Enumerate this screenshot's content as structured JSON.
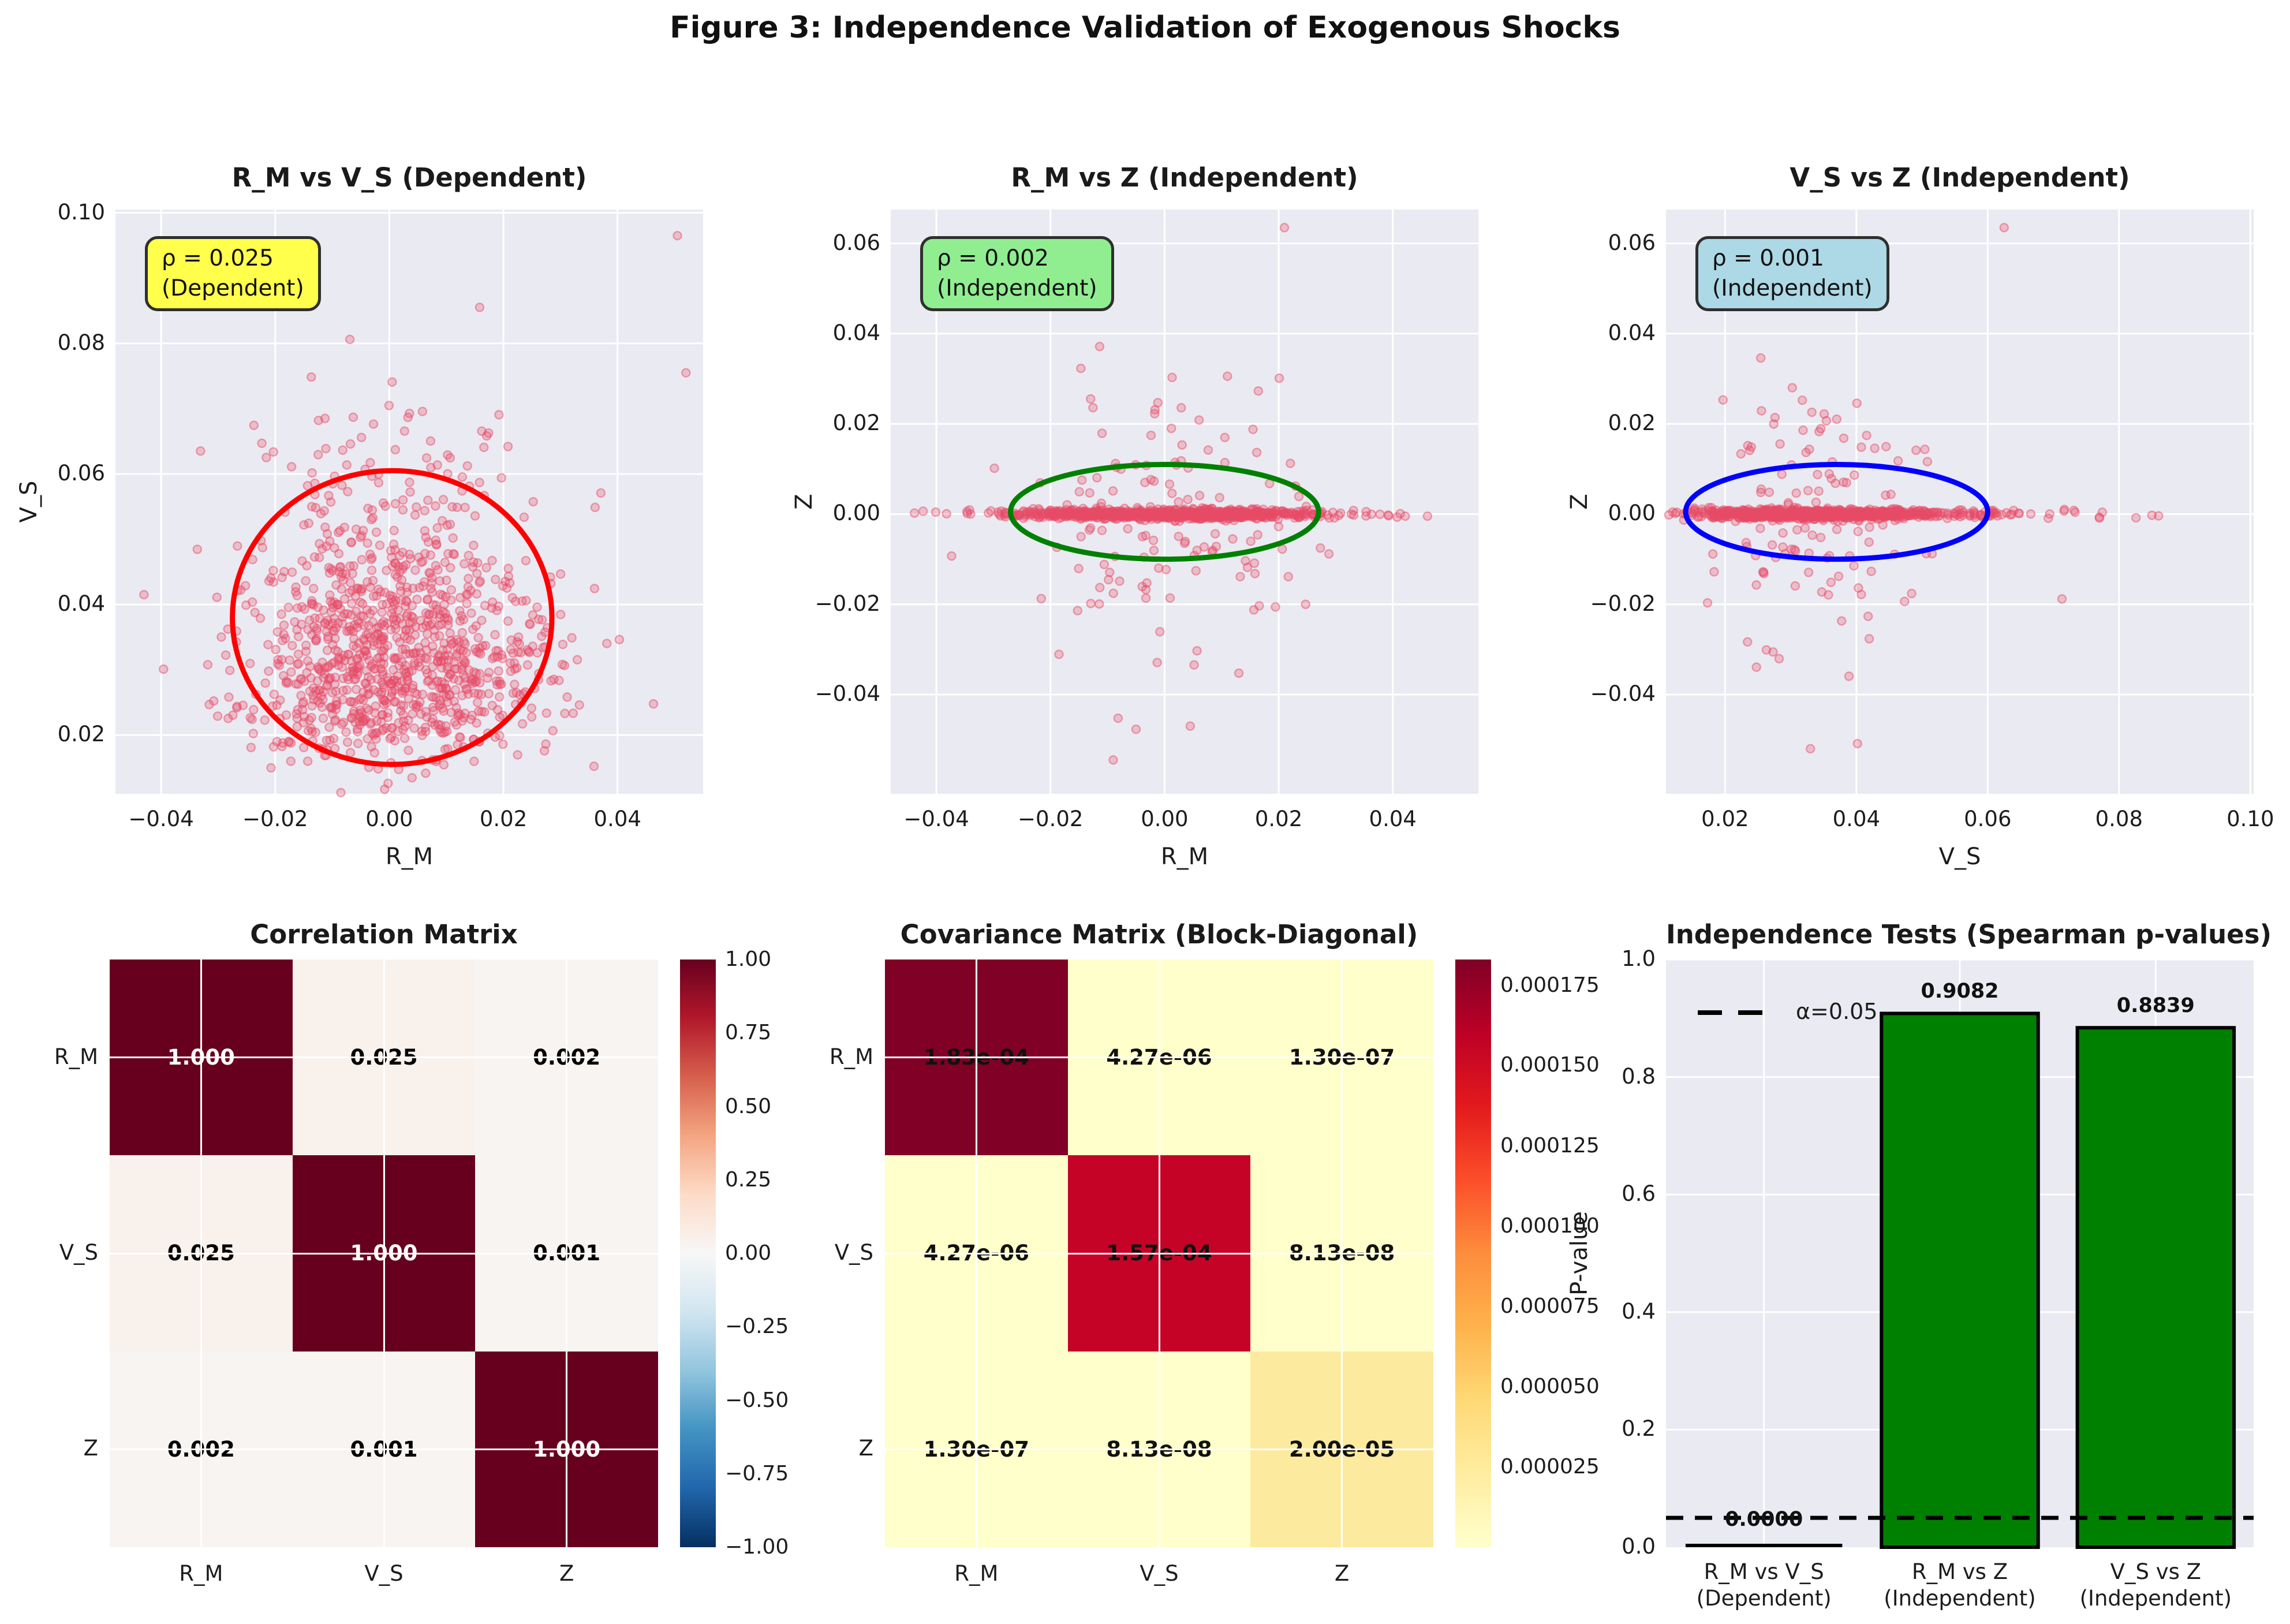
{
  "figure": {
    "title": "Figure 3: Independence Validation of Exogenous Shocks"
  },
  "colors": {
    "axes_bg": "#eaeaf2",
    "grid": "#ffffff",
    "point_fill": "rgba(231,76,103,0.28)",
    "point_edge": "rgba(231,76,103,0.48)",
    "ellipse_red": "#ff0000",
    "ellipse_green": "#008000",
    "ellipse_blue": "#0000ff",
    "bar_green": "#008000",
    "annotation_yellow": "#ffff4c",
    "annotation_lightgreen": "#90ee90",
    "annotation_lightblue": "#add8e6"
  },
  "chart_data": [
    {
      "type": "scatter",
      "title": "R_M vs V_S (Dependent)",
      "xlabel": "R_M",
      "ylabel": "V_S",
      "xlim": [
        -0.048,
        0.055
      ],
      "ylim": [
        0.011,
        0.1005
      ],
      "xticks": [
        {
          "v": -0.04,
          "label": "−0.04"
        },
        {
          "v": -0.02,
          "label": "−0.02"
        },
        {
          "v": 0.0,
          "label": "0.00"
        },
        {
          "v": 0.02,
          "label": "0.02"
        },
        {
          "v": 0.04,
          "label": "0.04"
        }
      ],
      "yticks": [
        {
          "v": 0.02,
          "label": "0.02"
        },
        {
          "v": 0.04,
          "label": "0.04"
        },
        {
          "v": 0.06,
          "label": "0.06"
        },
        {
          "v": 0.08,
          "label": "0.08"
        },
        {
          "v": 0.1,
          "label": "0.10"
        }
      ],
      "rho": 0.025,
      "annotation": {
        "line1": "ρ = 0.025",
        "line2": "(Dependent)",
        "bg": "#ffff4c"
      },
      "ellipse": {
        "cx": 0.0005,
        "cy": 0.038,
        "rx": 0.028,
        "ry": 0.0225,
        "color": "#ff0000"
      },
      "points": {
        "kind": "cloud",
        "n": 1100,
        "seed": 42,
        "x": {
          "dist": "normal",
          "mean": 0.0005,
          "std": 0.0135
        },
        "y": {
          "dist": "lognormal",
          "scale": 0.033,
          "sigma": 0.33
        },
        "extra": [
          [
            0.0505,
            0.0965
          ],
          [
            0.052,
            0.0755
          ],
          [
            -0.043,
            0.0415
          ]
        ]
      }
    },
    {
      "type": "scatter",
      "title": "R_M vs Z (Independent)",
      "xlabel": "R_M",
      "ylabel": "Z",
      "xlim": [
        -0.048,
        0.055
      ],
      "ylim": [
        -0.062,
        0.0675
      ],
      "xticks": [
        {
          "v": -0.04,
          "label": "−0.04"
        },
        {
          "v": -0.02,
          "label": "−0.02"
        },
        {
          "v": 0.0,
          "label": "0.00"
        },
        {
          "v": 0.02,
          "label": "0.02"
        },
        {
          "v": 0.04,
          "label": "0.04"
        }
      ],
      "yticks": [
        {
          "v": 0.06,
          "label": "0.06"
        },
        {
          "v": 0.04,
          "label": "0.04"
        },
        {
          "v": 0.02,
          "label": "0.02"
        },
        {
          "v": 0.0,
          "label": "0.00"
        },
        {
          "v": -0.02,
          "label": "−0.02"
        },
        {
          "v": -0.04,
          "label": "−0.04"
        }
      ],
      "rho": 0.002,
      "annotation": {
        "line1": "ρ = 0.002",
        "line2": "(Independent)",
        "bg": "#90ee90"
      },
      "ellipse": {
        "cx": 0.0,
        "cy": 0.0005,
        "rx": 0.027,
        "ry": 0.0105,
        "color": "#008000"
      },
      "points": {
        "kind": "band",
        "seed": 7,
        "n_band": 900,
        "band_z_std": 0.0005,
        "band_x": {
          "dist": "normal",
          "mean": 0.0005,
          "std": 0.0135
        },
        "n_scatter": 130,
        "scatter_z_std": 0.0155,
        "scatter_x": {
          "dist": "normal",
          "mean": 0.0,
          "std": 0.012
        },
        "extra": [
          [
            0.021,
            0.0635
          ],
          [
            -0.009,
            -0.0545
          ],
          [
            0.0045,
            -0.047
          ]
        ]
      }
    },
    {
      "type": "scatter",
      "title": "V_S vs Z (Independent)",
      "xlabel": "V_S",
      "ylabel": "Z",
      "xlim": [
        0.011,
        0.1005
      ],
      "ylim": [
        -0.062,
        0.0675
      ],
      "xticks": [
        {
          "v": 0.02,
          "label": "0.02"
        },
        {
          "v": 0.04,
          "label": "0.04"
        },
        {
          "v": 0.06,
          "label": "0.06"
        },
        {
          "v": 0.08,
          "label": "0.08"
        },
        {
          "v": 0.1,
          "label": "0.10"
        }
      ],
      "yticks": [
        {
          "v": 0.06,
          "label": "0.06"
        },
        {
          "v": 0.04,
          "label": "0.04"
        },
        {
          "v": 0.02,
          "label": "0.02"
        },
        {
          "v": 0.0,
          "label": "0.00"
        },
        {
          "v": -0.02,
          "label": "−0.02"
        },
        {
          "v": -0.04,
          "label": "−0.04"
        }
      ],
      "rho": 0.001,
      "annotation": {
        "line1": "ρ = 0.001",
        "line2": "(Independent)",
        "bg": "#add8e6"
      },
      "ellipse": {
        "cx": 0.037,
        "cy": 0.0005,
        "rx": 0.023,
        "ry": 0.0105,
        "color": "#0000ff"
      },
      "points": {
        "kind": "band",
        "seed": 13,
        "n_band": 900,
        "band_z_std": 0.0005,
        "band_x": {
          "dist": "lognormal",
          "scale": 0.033,
          "sigma": 0.33
        },
        "n_scatter": 130,
        "scatter_z_std": 0.0155,
        "scatter_x": {
          "dist": "lognormal",
          "scale": 0.035,
          "sigma": 0.3
        },
        "extra": [
          [
            0.0625,
            0.0635
          ],
          [
            0.033,
            -0.052
          ]
        ]
      }
    },
    {
      "type": "heatmap",
      "title": "Correlation Matrix",
      "row_labels": [
        "R_M",
        "V_S",
        "Z"
      ],
      "col_labels": [
        "R_M",
        "V_S",
        "Z"
      ],
      "values": [
        [
          1.0,
          0.025,
          0.002
        ],
        [
          0.025,
          1.0,
          0.001
        ],
        [
          0.002,
          0.001,
          1.0
        ]
      ],
      "cell_text": [
        [
          "1.000",
          "0.025",
          "0.002"
        ],
        [
          "0.025",
          "1.000",
          "0.001"
        ],
        [
          "0.002",
          "0.001",
          "1.000"
        ]
      ],
      "cell_colors": [
        [
          "#67001f",
          "#f8f1ec",
          "#f7f4f2"
        ],
        [
          "#f8f1ec",
          "#67001f",
          "#f7f4f2"
        ],
        [
          "#f7f4f2",
          "#f7f4f2",
          "#67001f"
        ]
      ],
      "text_colors": [
        [
          "#ffffff",
          "#000000",
          "#000000"
        ],
        [
          "#000000",
          "#ffffff",
          "#000000"
        ],
        [
          "#000000",
          "#000000",
          "#ffffff"
        ]
      ],
      "colorbar": {
        "cmap": "RdBu_r",
        "gradient": [
          "#67001f",
          "#b2182b",
          "#d6604d",
          "#f4a582",
          "#fddbc7",
          "#f7f7f7",
          "#d1e5f0",
          "#92c5de",
          "#4393c3",
          "#2166ac",
          "#053061"
        ],
        "ticks": [
          {
            "f": 0.0,
            "label": "1.00"
          },
          {
            "f": 0.125,
            "label": "0.75"
          },
          {
            "f": 0.25,
            "label": "0.50"
          },
          {
            "f": 0.375,
            "label": "0.25"
          },
          {
            "f": 0.5,
            "label": "0.00"
          },
          {
            "f": 0.625,
            "label": "−0.25"
          },
          {
            "f": 0.75,
            "label": "−0.50"
          },
          {
            "f": 0.875,
            "label": "−0.75"
          },
          {
            "f": 1.0,
            "label": "−1.00"
          }
        ]
      }
    },
    {
      "type": "heatmap",
      "title": "Covariance Matrix (Block-Diagonal)",
      "row_labels": [
        "R_M",
        "V_S",
        "Z"
      ],
      "col_labels": [
        "R_M",
        "V_S",
        "Z"
      ],
      "values": [
        [
          0.000183,
          4.27e-06,
          1.3e-07
        ],
        [
          4.27e-06,
          0.000157,
          8.13e-08
        ],
        [
          1.3e-07,
          8.13e-08,
          2e-05
        ]
      ],
      "cell_text": [
        [
          "1.83e-04",
          "4.27e-06",
          "1.30e-07"
        ],
        [
          "4.27e-06",
          "1.57e-04",
          "8.13e-08"
        ],
        [
          "1.30e-07",
          "8.13e-08",
          "2.00e-05"
        ]
      ],
      "cell_colors": [
        [
          "#800026",
          "#ffffcb",
          "#ffffcb"
        ],
        [
          "#ffffcb",
          "#c40327",
          "#ffffcb"
        ],
        [
          "#ffffcb",
          "#ffffcb",
          "#fcea9f"
        ]
      ],
      "text_colors": [
        [
          "#111111",
          "#111111",
          "#111111"
        ],
        [
          "#111111",
          "#111111",
          "#111111"
        ],
        [
          "#111111",
          "#111111",
          "#111111"
        ]
      ],
      "colorbar": {
        "cmap": "YlOrRd",
        "gradient": [
          "#800026",
          "#bd0026",
          "#e31a1c",
          "#fc4e2a",
          "#fd8d3c",
          "#feb24c",
          "#fed976",
          "#ffeda0",
          "#ffffcc"
        ],
        "ticks": [
          {
            "f": 0.044,
            "label": "0.000175"
          },
          {
            "f": 0.18,
            "label": "0.000150"
          },
          {
            "f": 0.317,
            "label": "0.000125"
          },
          {
            "f": 0.454,
            "label": "0.000100"
          },
          {
            "f": 0.59,
            "label": "0.000075"
          },
          {
            "f": 0.727,
            "label": "0.000050"
          },
          {
            "f": 0.863,
            "label": "0.000025"
          }
        ]
      }
    },
    {
      "type": "bar",
      "title": "Independence Tests (Spearman p-values)",
      "ylabel": "P-value",
      "ylim": [
        0,
        1.0
      ],
      "yticks": [
        {
          "v": 0.0,
          "label": "0.0"
        },
        {
          "v": 0.2,
          "label": "0.2"
        },
        {
          "v": 0.4,
          "label": "0.4"
        },
        {
          "v": 0.6,
          "label": "0.6"
        },
        {
          "v": 0.8,
          "label": "0.8"
        },
        {
          "v": 1.0,
          "label": "1.0"
        }
      ],
      "categories": [
        [
          "R_M vs V_S",
          "(Dependent)"
        ],
        [
          "R_M vs Z",
          "(Independent)"
        ],
        [
          "V_S vs Z",
          "(Independent)"
        ]
      ],
      "values": [
        0.0,
        0.9082,
        0.8839
      ],
      "value_labels": [
        "0.0000",
        "0.9082",
        "0.8839"
      ],
      "bar_color": "#008000",
      "alpha_line": {
        "value": 0.05,
        "label": "α=0.05"
      }
    }
  ]
}
